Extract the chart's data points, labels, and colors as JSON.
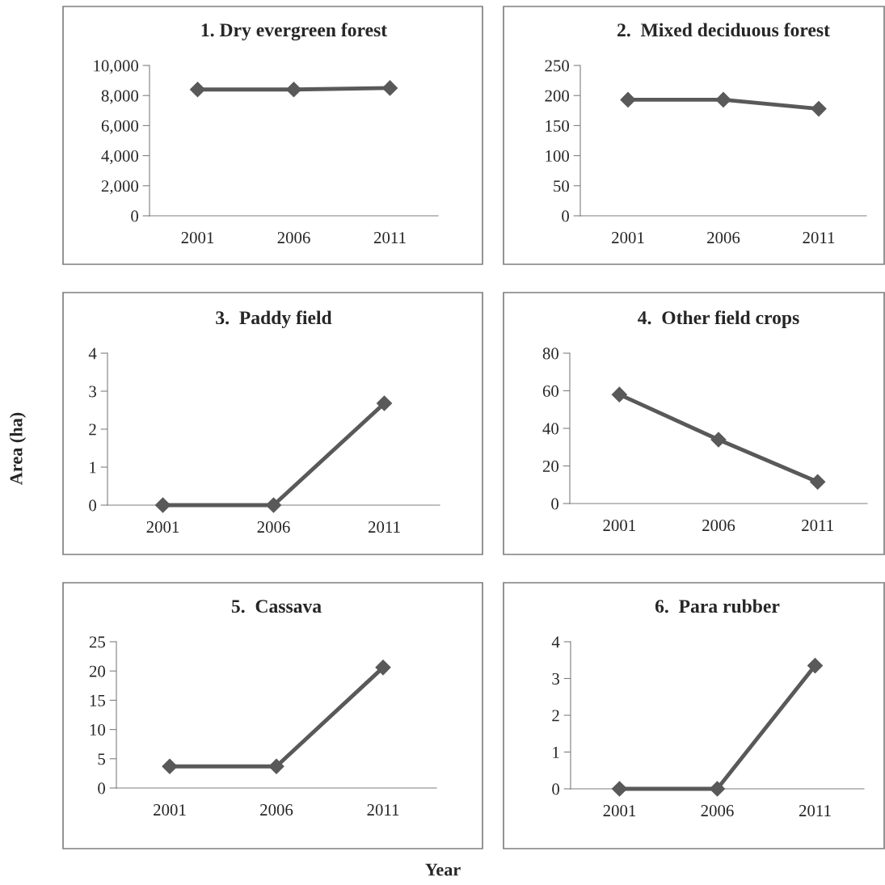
{
  "chart_data": [
    {
      "type": "line",
      "title": "1. Dry evergreen forest",
      "categories": [
        "2001",
        "2006",
        "2011"
      ],
      "series": [
        {
          "color": "#595959",
          "values": [
            8400,
            8400,
            8500
          ]
        }
      ],
      "ylim": [
        0,
        10000
      ],
      "yticks": [
        0,
        {
          "value": 2000,
          "label": "2,000"
        },
        {
          "value": 4000,
          "label": "4,000"
        },
        {
          "value": 6000,
          "label": "6,000"
        },
        {
          "value": 8000,
          "label": "8,000"
        },
        {
          "value": 10000,
          "label": "10,000"
        }
      ],
      "marker": "diamond",
      "line_style": "solid",
      "grid": false,
      "legend": false
    },
    {
      "type": "line",
      "title": "2.  Mixed deciduous forest",
      "categories": [
        "2001",
        "2006",
        "2011"
      ],
      "series": [
        {
          "color": "#595959",
          "values": [
            193,
            193,
            178
          ]
        }
      ],
      "ylim": [
        0,
        250
      ],
      "yticks": [
        0,
        50,
        100,
        150,
        200,
        250
      ],
      "marker": "diamond",
      "line_style": "solid",
      "grid": false,
      "legend": false
    },
    {
      "type": "line",
      "title": "3.  Paddy field",
      "ylabel": "Area (ha)",
      "categories": [
        "2001",
        "2006",
        "2011"
      ],
      "series": [
        {
          "color": "#595959",
          "values": [
            0,
            0,
            2.68
          ]
        }
      ],
      "ylim": [
        0,
        4
      ],
      "yticks": [
        0,
        1,
        2,
        3,
        4
      ],
      "marker": "diamond",
      "line_style": "solid",
      "grid": false,
      "legend": false
    },
    {
      "type": "line",
      "title": "4.  Other field crops",
      "categories": [
        "2001",
        "2006",
        "2011"
      ],
      "series": [
        {
          "color": "#595959",
          "values": [
            58,
            34,
            11.5
          ]
        }
      ],
      "ylim": [
        0,
        80
      ],
      "yticks": [
        0,
        20,
        40,
        60,
        80
      ],
      "marker": "diamond",
      "line_style": "solid",
      "grid": false,
      "legend": false
    },
    {
      "type": "line",
      "title": "5.  Cassava",
      "xlabel": "Year",
      "categories": [
        "2001",
        "2006",
        "2011"
      ],
      "series": [
        {
          "color": "#595959",
          "values": [
            3.7,
            3.7,
            20.6
          ]
        }
      ],
      "ylim": [
        0,
        25
      ],
      "yticks": [
        0,
        5,
        10,
        15,
        20,
        25
      ],
      "marker": "diamond",
      "line_style": "solid",
      "grid": false,
      "legend": false
    },
    {
      "type": "line",
      "title": "6.  Para rubber",
      "categories": [
        "2001",
        "2006",
        "2011"
      ],
      "series": [
        {
          "color": "#595959",
          "values": [
            0,
            0,
            3.35
          ]
        }
      ],
      "ylim": [
        0,
        4
      ],
      "yticks": [
        0,
        1,
        2,
        3,
        4
      ],
      "marker": "diamond",
      "line_style": "solid",
      "grid": false,
      "legend": false
    }
  ]
}
